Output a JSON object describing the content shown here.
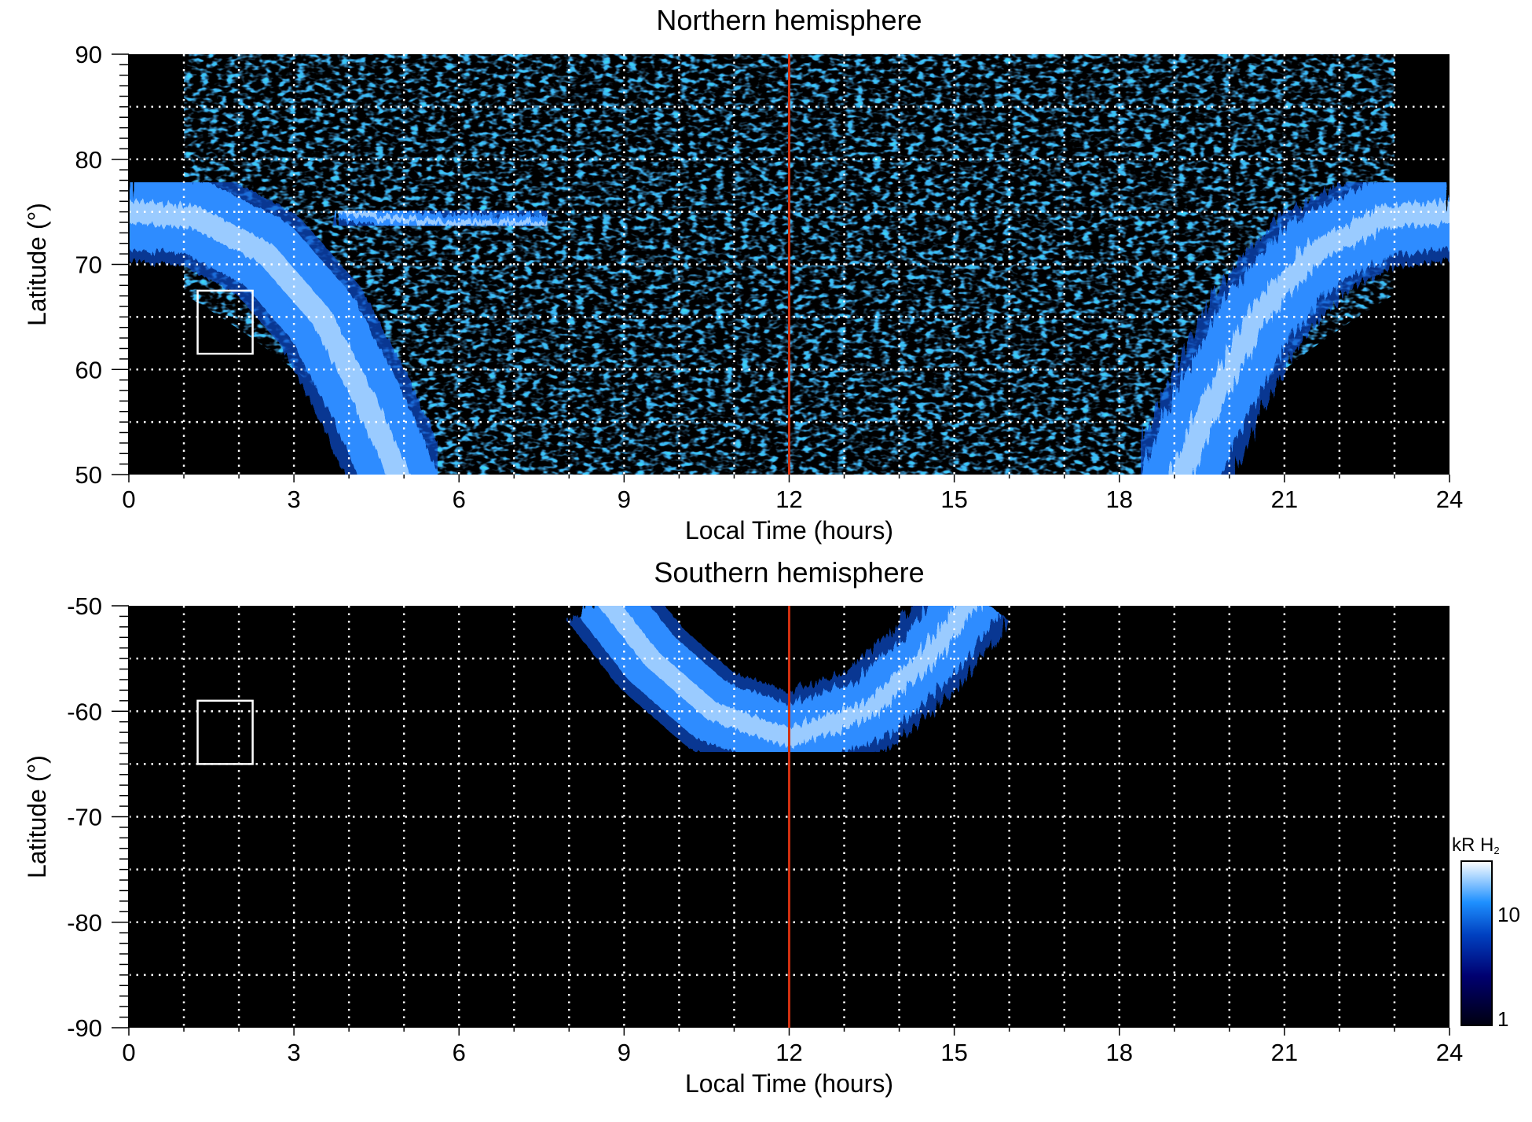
{
  "chart_data": [
    {
      "type": "heatmap",
      "title": "Northern hemisphere",
      "xlabel": "Local Time (hours)",
      "ylabel": "Latitude (°)",
      "xlim": [
        0,
        24
      ],
      "ylim": [
        50,
        90
      ],
      "xticks": [
        "0",
        "3",
        "6",
        "9",
        "12",
        "15",
        "18",
        "21",
        "24"
      ],
      "yticks": [
        "50",
        "60",
        "70",
        "80",
        "90"
      ],
      "grid": true,
      "marker_line_lt": 12,
      "box": {
        "lt": [
          1.25,
          2.25
        ],
        "lat": [
          61.5,
          67.5
        ]
      },
      "bands": [
        {
          "name": "dawn-oval",
          "points": [
            [
              0,
              75
            ],
            [
              1.2,
              74.5
            ],
            [
              2.5,
              71
            ],
            [
              3.5,
              65
            ],
            [
              4.3,
              57
            ],
            [
              4.9,
              50
            ],
            [
              5.1,
              47
            ]
          ]
        },
        {
          "name": "dusk-oval",
          "points": [
            [
              24,
              75
            ],
            [
              22.8,
              74.5
            ],
            [
              21.5,
              71
            ],
            [
              20.5,
              65
            ],
            [
              19.7,
              57
            ],
            [
              19.1,
              50
            ],
            [
              18.9,
              47
            ]
          ]
        },
        {
          "name": "dayside-arc",
          "points": [
            [
              3.8,
              75
            ],
            [
              5,
              74.2
            ],
            [
              6.5,
              73.8
            ],
            [
              7.6,
              74
            ]
          ]
        }
      ]
    },
    {
      "type": "heatmap",
      "title": "Southern hemisphere",
      "xlabel": "Local Time (hours)",
      "ylabel": "Latitude (°)",
      "xlim": [
        0,
        24
      ],
      "ylim": [
        -90,
        -50
      ],
      "xticks": [
        "0",
        "3",
        "6",
        "9",
        "12",
        "15",
        "18",
        "21",
        "24"
      ],
      "yticks": [
        "-90",
        "-80",
        "-70",
        "-60",
        "-50"
      ],
      "grid": true,
      "marker_line_lt": 12,
      "box": {
        "lt": [
          1.25,
          2.25
        ],
        "lat": [
          -65,
          -59
        ]
      },
      "bands": [
        {
          "name": "southern-oval",
          "points": [
            [
              8.6,
              -49
            ],
            [
              9.5,
              -55
            ],
            [
              10.6,
              -60
            ],
            [
              12,
              -62.5
            ],
            [
              13.4,
              -60
            ],
            [
              14.5,
              -55
            ],
            [
              15.4,
              -49
            ]
          ]
        }
      ]
    }
  ],
  "colorbar": {
    "label": "kR H",
    "label_sub": "2",
    "ticks": [
      "1",
      "10"
    ],
    "range": [
      1,
      30
    ],
    "scale": "log",
    "colors": [
      "#000010",
      "#000070",
      "#0040c0",
      "#1e90ff",
      "#ffffff"
    ]
  },
  "colors": {
    "marker_line": "#d03010",
    "box": "#ffffff",
    "grid": "#ffffff"
  }
}
